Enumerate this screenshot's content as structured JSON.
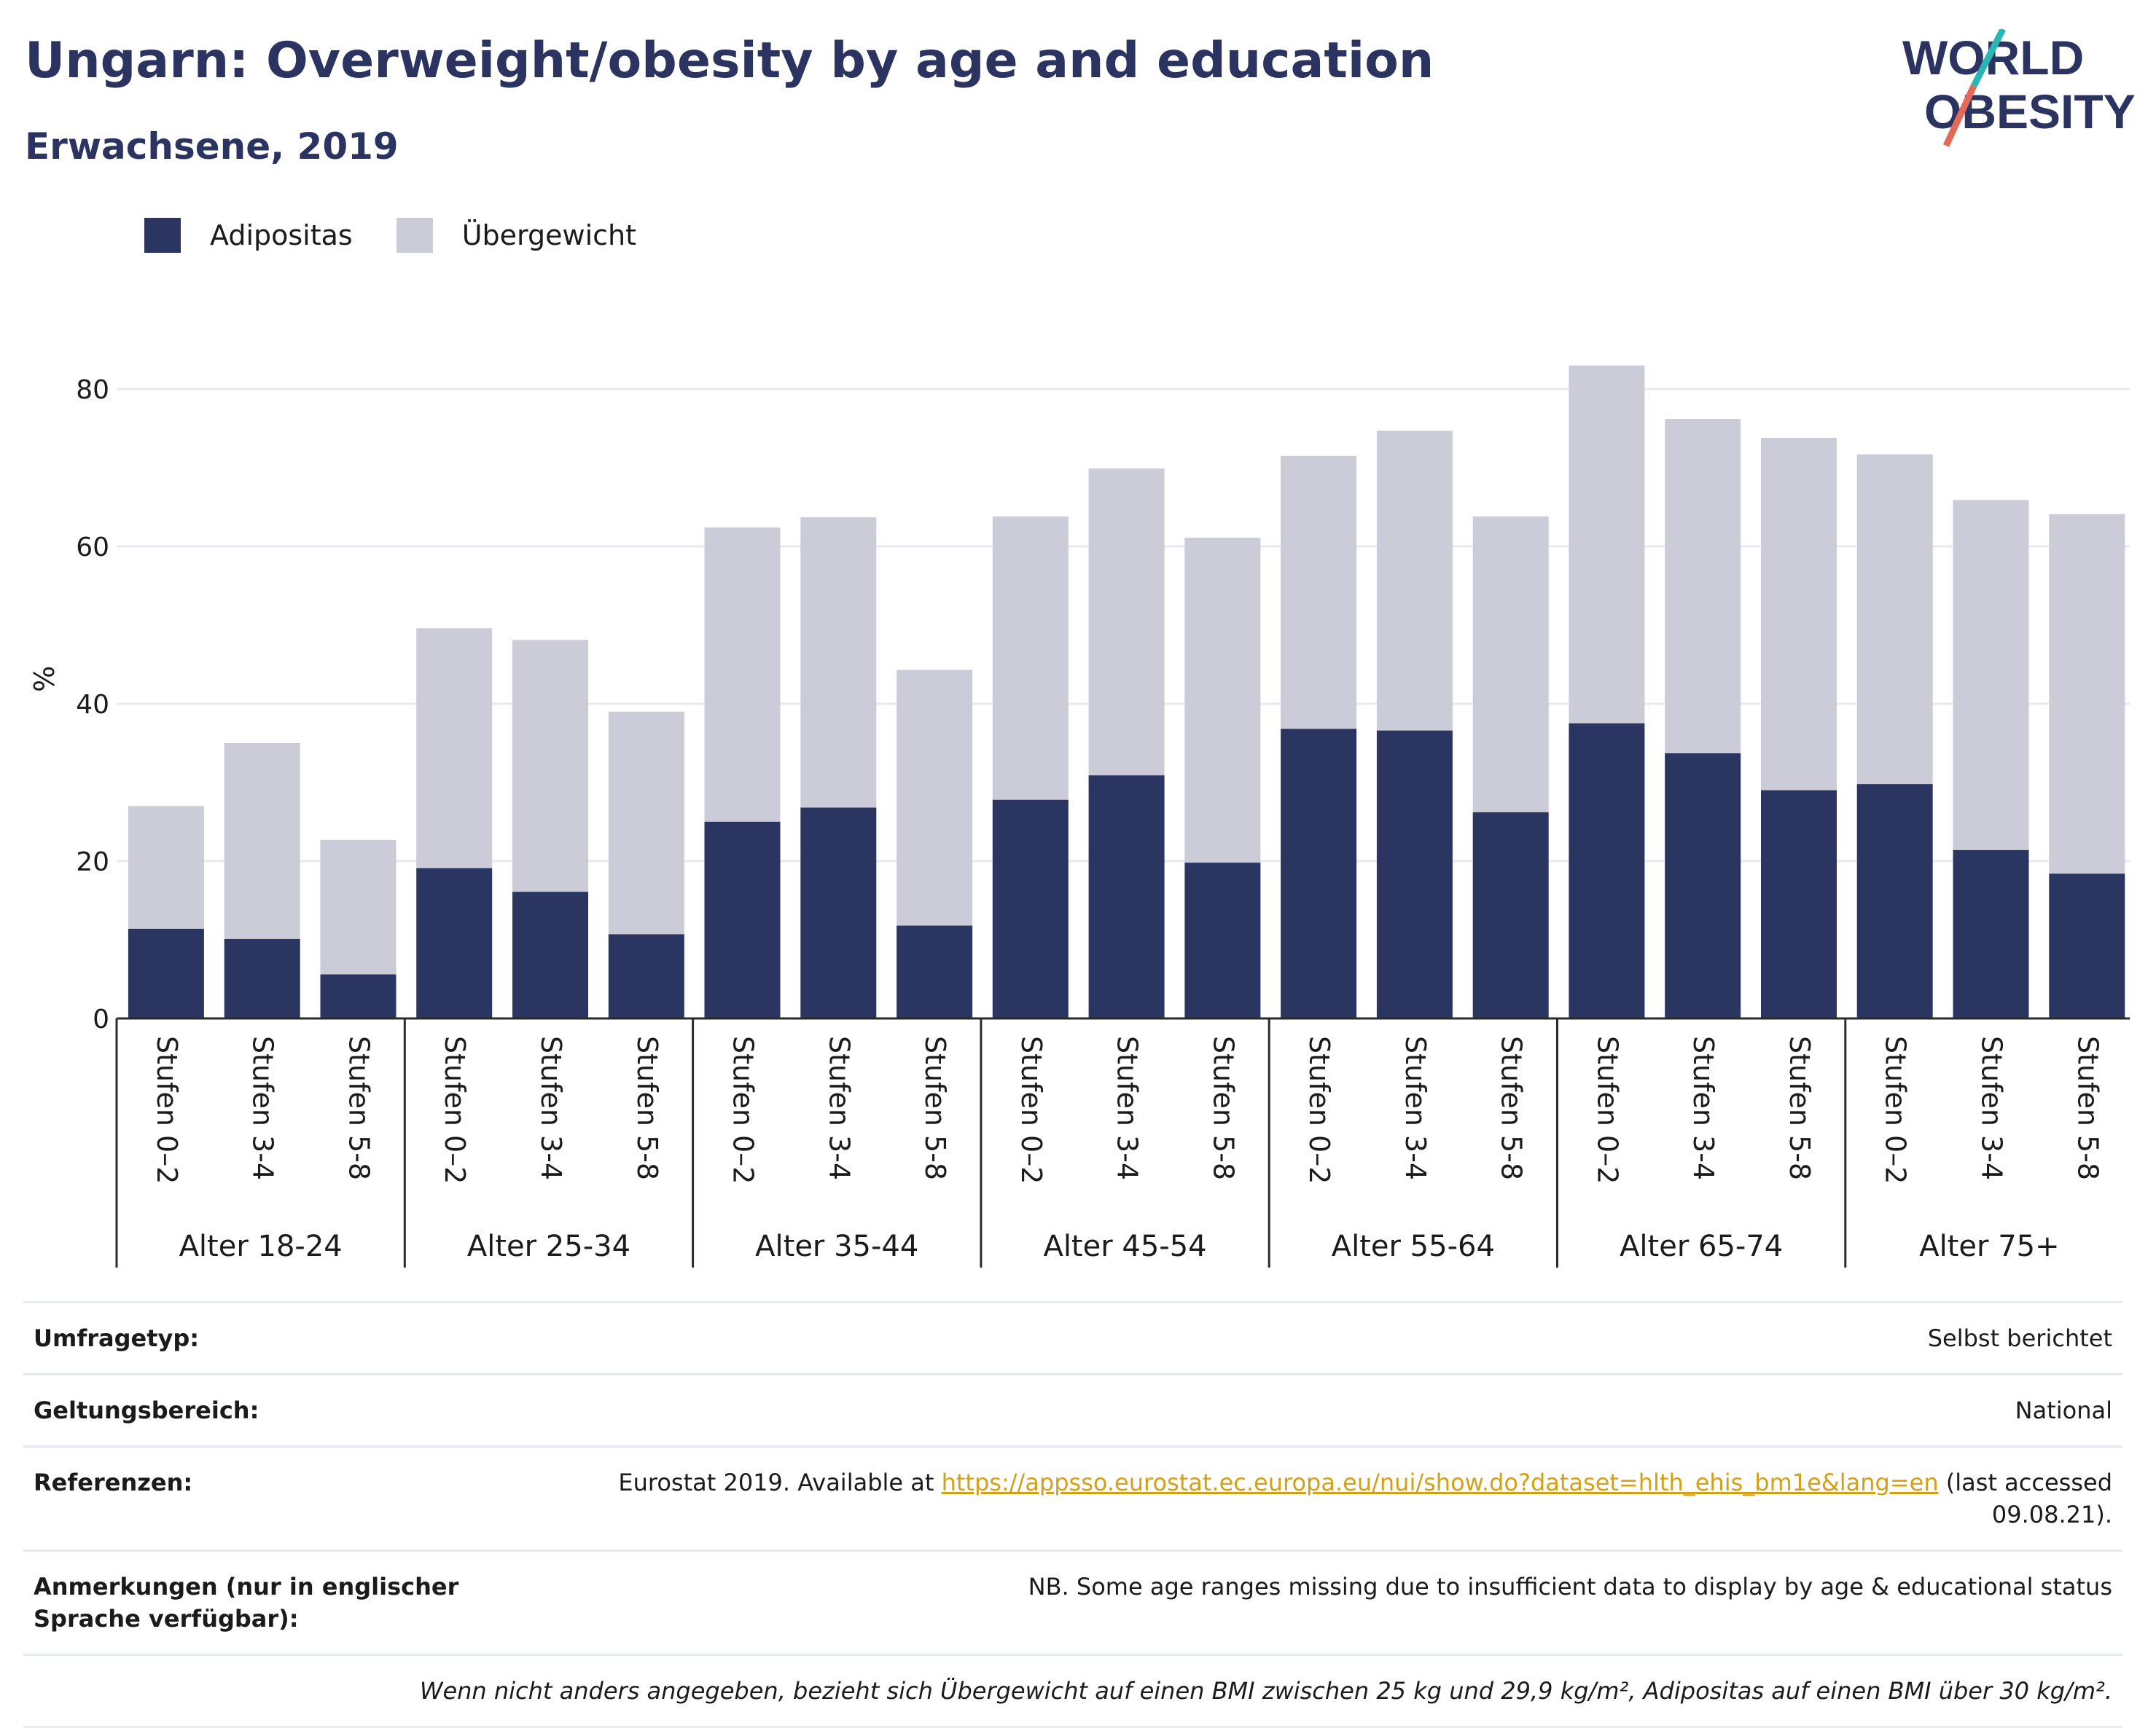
{
  "header": {
    "title": "Ungarn: Overweight/obesity by age and education",
    "subtitle": "Erwachsene, 2019",
    "logo_line1": "WORLD",
    "logo_line2": "OBESITY"
  },
  "legend": {
    "items": [
      {
        "label": "Adipositas",
        "color": "#2b3561"
      },
      {
        "label": "Übergewicht",
        "color": "#cbccd8"
      }
    ]
  },
  "chart_data": {
    "type": "bar",
    "stacked": true,
    "title": "",
    "xlabel": "",
    "ylabel": "%",
    "ylim": [
      0,
      90
    ],
    "yticks": [
      0,
      20,
      40,
      60,
      80
    ],
    "grid": true,
    "legend_position": "top-left",
    "groups": [
      "Alter 18-24",
      "Alter 25-34",
      "Alter 35-44",
      "Alter 45-54",
      "Alter 55-64",
      "Alter 65-74",
      "Alter 75+"
    ],
    "subcategories": [
      "Stufen 0–2",
      "Stufen 3-4",
      "Stufen 5-8"
    ],
    "series": [
      {
        "name": "Adipositas",
        "color": "#2b3561",
        "values": [
          [
            11.4,
            10.1,
            5.6
          ],
          [
            19.1,
            16.1,
            10.7
          ],
          [
            25.0,
            26.8,
            11.8
          ],
          [
            27.8,
            30.9,
            19.8
          ],
          [
            36.8,
            36.6,
            26.2
          ],
          [
            37.5,
            33.7,
            29.0
          ],
          [
            29.8,
            21.4,
            18.4
          ]
        ]
      },
      {
        "name": "Übergewicht",
        "color": "#cbccd8",
        "values": [
          [
            15.6,
            24.9,
            17.1
          ],
          [
            30.5,
            32.0,
            28.3
          ],
          [
            37.4,
            36.9,
            32.5
          ],
          [
            36.0,
            39.0,
            41.3
          ],
          [
            34.7,
            38.1,
            37.6
          ],
          [
            45.5,
            42.5,
            44.8
          ],
          [
            41.9,
            44.5,
            45.7
          ]
        ]
      }
    ],
    "totals": [
      [
        27.0,
        35.0,
        22.7
      ],
      [
        49.6,
        48.1,
        39.0
      ],
      [
        62.4,
        63.7,
        44.3
      ],
      [
        63.8,
        69.9,
        61.1
      ],
      [
        71.5,
        74.7,
        63.8
      ],
      [
        83.0,
        76.2,
        73.8
      ],
      [
        71.7,
        65.9,
        64.1
      ]
    ]
  },
  "meta": {
    "survey_type_label": "Umfragetyp:",
    "survey_type_value": "Selbst berichtet",
    "scope_label": "Geltungsbereich:",
    "scope_value": "National",
    "refs_label": "Referenzen:",
    "refs_prefix": "Eurostat 2019. Available at ",
    "refs_link": "https://appsso.eurostat.ec.europa.eu/nui/show.do?dataset=hlth_ehis_bm1e&lang=en",
    "refs_suffix": " (last accessed 09.08.21).",
    "notes_label": "Anmerkungen (nur in englischer Sprache verfügbar):",
    "notes_value": "NB. Some age ranges missing due to insufficient data to display by age & educational status",
    "definition": "Wenn nicht anders angegeben, bezieht sich Übergewicht auf einen BMI zwischen 25 kg und 29,9 kg/m², Adipositas auf einen BMI über 30 kg/m²."
  }
}
